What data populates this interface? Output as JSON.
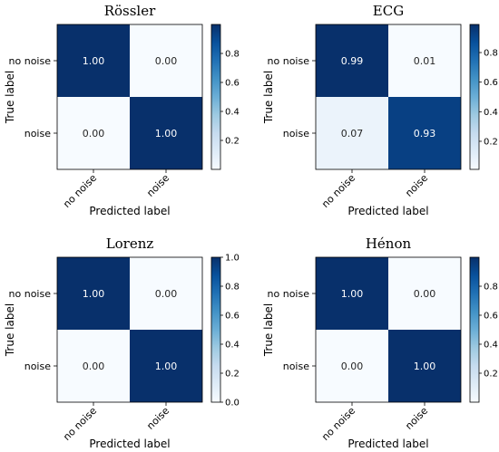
{
  "chart_data": [
    {
      "type": "heatmap",
      "title": "Rössler",
      "xlabel": "Predicted label",
      "ylabel": "True label",
      "x_tick_labels": [
        "no noise",
        "noise"
      ],
      "y_tick_labels": [
        "no noise",
        "noise"
      ],
      "values": [
        [
          1.0,
          0.0
        ],
        [
          0.0,
          1.0
        ]
      ],
      "value_labels": [
        [
          "1.00",
          "0.00"
        ],
        [
          "0.00",
          "1.00"
        ]
      ],
      "colorbar": {
        "range": [
          0,
          1.0
        ],
        "ticks": [
          "0.2",
          "0.4",
          "0.6",
          "0.8"
        ],
        "tick_values": [
          0.2,
          0.4,
          0.6,
          0.8
        ]
      }
    },
    {
      "type": "heatmap",
      "title": "ECG",
      "xlabel": "Predicted label",
      "ylabel": "True label",
      "x_tick_labels": [
        "no noise",
        "noise"
      ],
      "y_tick_labels": [
        "no noise",
        "noise"
      ],
      "values": [
        [
          0.99,
          0.01
        ],
        [
          0.07,
          0.93
        ]
      ],
      "value_labels": [
        [
          "0.99",
          "0.01"
        ],
        [
          "0.07",
          "0.93"
        ]
      ],
      "colorbar": {
        "range": [
          0.01,
          0.99
        ],
        "ticks": [
          "0.2",
          "0.4",
          "0.6",
          "0.8"
        ],
        "tick_values": [
          0.2,
          0.4,
          0.6,
          0.8
        ]
      }
    },
    {
      "type": "heatmap",
      "title": "Lorenz",
      "xlabel": "Predicted label",
      "ylabel": "True label",
      "x_tick_labels": [
        "no noise",
        "noise"
      ],
      "y_tick_labels": [
        "no noise",
        "noise"
      ],
      "values": [
        [
          1.0,
          0.0
        ],
        [
          0.0,
          1.0
        ]
      ],
      "value_labels": [
        [
          "1.00",
          "0.00"
        ],
        [
          "0.00",
          "1.00"
        ]
      ],
      "colorbar": {
        "range": [
          0.0,
          1.0
        ],
        "ticks": [
          "0.0",
          "0.2",
          "0.4",
          "0.6",
          "0.8",
          "1.0"
        ],
        "tick_values": [
          0.0,
          0.2,
          0.4,
          0.6,
          0.8,
          1.0
        ]
      }
    },
    {
      "type": "heatmap",
      "title": "Hénon",
      "xlabel": "Predicted label",
      "ylabel": "True label",
      "x_tick_labels": [
        "no noise",
        "noise"
      ],
      "y_tick_labels": [
        "no noise",
        "noise"
      ],
      "values": [
        [
          1.0,
          0.0
        ],
        [
          0.0,
          1.0
        ]
      ],
      "value_labels": [
        [
          "1.00",
          "0.00"
        ],
        [
          "0.00",
          "1.00"
        ]
      ],
      "colorbar": {
        "range": [
          0,
          1.0
        ],
        "ticks": [
          "0.2",
          "0.4",
          "0.6",
          "0.8"
        ],
        "tick_values": [
          0.2,
          0.4,
          0.6,
          0.8
        ]
      }
    }
  ],
  "colors": {
    "high": "#08306b",
    "low": "#f7fbff",
    "text_dark": "#262626",
    "text_light": "#ffffff"
  }
}
